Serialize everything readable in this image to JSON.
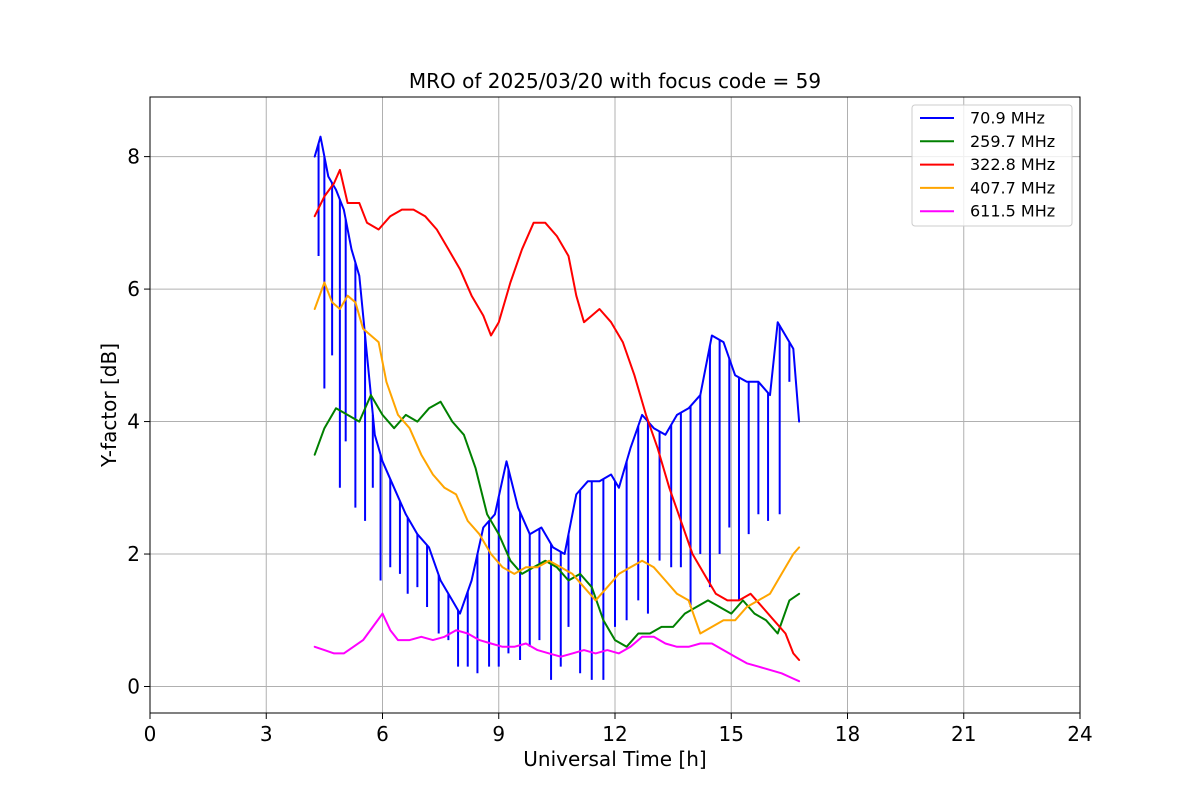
{
  "chart_data": {
    "type": "line",
    "title": "MRO of 2025/03/20 with focus code = 59",
    "xlabel": "Universal Time [h]",
    "ylabel": "Y-factor [dB]",
    "xlim": [
      0,
      24
    ],
    "ylim": [
      -0.4,
      8.9
    ],
    "xticks": [
      0,
      3,
      6,
      9,
      12,
      15,
      18,
      21,
      24
    ],
    "xtick_labels": [
      "0",
      "3",
      "6",
      "9",
      "12",
      "15",
      "18",
      "21",
      "24"
    ],
    "yticks": [
      0,
      2,
      4,
      6,
      8
    ],
    "ytick_labels": [
      "0",
      "2",
      "4",
      "6",
      "8"
    ],
    "grid": true,
    "legend_position": "top-right",
    "series": [
      {
        "name": " 70.9 MHz",
        "color": "#0000ff",
        "x": [
          4.25,
          4.4,
          4.6,
          4.8,
          5.0,
          5.2,
          5.4,
          5.6,
          5.8,
          6.0,
          6.3,
          6.6,
          6.9,
          7.2,
          7.5,
          7.8,
          8.0,
          8.3,
          8.6,
          8.9,
          9.2,
          9.5,
          9.8,
          10.1,
          10.4,
          10.7,
          11.0,
          11.3,
          11.6,
          11.9,
          12.1,
          12.4,
          12.7,
          13.0,
          13.3,
          13.6,
          13.9,
          14.2,
          14.5,
          14.8,
          15.1,
          15.4,
          15.7,
          16.0,
          16.2,
          16.4,
          16.6,
          16.75
        ],
        "y": [
          8.0,
          8.3,
          7.7,
          7.5,
          7.2,
          6.6,
          6.2,
          5.0,
          3.8,
          3.4,
          3.0,
          2.6,
          2.3,
          2.1,
          1.6,
          1.3,
          1.1,
          1.6,
          2.4,
          2.6,
          3.4,
          2.7,
          2.3,
          2.4,
          2.1,
          2.0,
          2.9,
          3.1,
          3.1,
          3.2,
          3.0,
          3.6,
          4.1,
          3.9,
          3.8,
          4.1,
          4.2,
          4.4,
          5.3,
          5.2,
          4.7,
          4.6,
          4.6,
          4.4,
          5.5,
          5.3,
          5.1,
          4.0
        ],
        "spikes_x": [
          4.35,
          4.5,
          4.7,
          4.9,
          5.05,
          5.3,
          5.55,
          5.75,
          5.95,
          6.2,
          6.45,
          6.65,
          6.9,
          7.15,
          7.45,
          7.7,
          7.95,
          8.2,
          8.45,
          8.75,
          9.0,
          9.25,
          9.55,
          9.8,
          10.05,
          10.35,
          10.6,
          10.8,
          11.1,
          11.4,
          11.7,
          12.0,
          12.3,
          12.6,
          12.85,
          13.15,
          13.45,
          13.7,
          13.95,
          14.2,
          14.45,
          14.7,
          14.95,
          15.2,
          15.45,
          15.7,
          15.95,
          16.25,
          16.5
        ],
        "spikes_y": [
          6.5,
          4.5,
          5.0,
          3.0,
          3.7,
          2.7,
          2.5,
          3.0,
          1.6,
          1.8,
          1.7,
          1.4,
          1.5,
          1.2,
          0.8,
          0.7,
          0.3,
          0.3,
          0.2,
          0.3,
          0.3,
          0.5,
          0.4,
          0.6,
          0.7,
          0.1,
          0.3,
          0.9,
          0.2,
          0.1,
          0.1,
          0.9,
          1.0,
          1.3,
          1.1,
          1.9,
          1.8,
          1.8,
          1.2,
          2.0,
          1.5,
          2.0,
          2.4,
          1.3,
          2.3,
          2.6,
          2.5,
          2.6,
          4.6
        ]
      },
      {
        "name": "259.7 MHz",
        "color": "#008000",
        "x": [
          4.25,
          4.5,
          4.8,
          5.1,
          5.4,
          5.7,
          6.0,
          6.3,
          6.6,
          6.9,
          7.2,
          7.5,
          7.8,
          8.1,
          8.4,
          8.7,
          9.0,
          9.3,
          9.6,
          9.9,
          10.2,
          10.5,
          10.8,
          11.1,
          11.4,
          11.7,
          12.0,
          12.3,
          12.6,
          12.9,
          13.2,
          13.5,
          13.8,
          14.1,
          14.4,
          14.7,
          15.0,
          15.3,
          15.6,
          15.9,
          16.2,
          16.5,
          16.75
        ],
        "y": [
          3.5,
          3.9,
          4.2,
          4.1,
          4.0,
          4.4,
          4.1,
          3.9,
          4.1,
          4.0,
          4.2,
          4.3,
          4.0,
          3.8,
          3.3,
          2.6,
          2.3,
          1.9,
          1.7,
          1.8,
          1.9,
          1.8,
          1.6,
          1.7,
          1.5,
          1.0,
          0.7,
          0.6,
          0.8,
          0.8,
          0.9,
          0.9,
          1.1,
          1.2,
          1.3,
          1.2,
          1.1,
          1.3,
          1.1,
          1.0,
          0.8,
          1.3,
          1.4
        ]
      },
      {
        "name": "322.8 MHz",
        "color": "#ff0000",
        "x": [
          4.25,
          4.5,
          4.75,
          4.9,
          5.1,
          5.4,
          5.6,
          5.9,
          6.2,
          6.5,
          6.8,
          7.1,
          7.4,
          7.7,
          8.0,
          8.3,
          8.6,
          8.8,
          9.0,
          9.3,
          9.6,
          9.9,
          10.2,
          10.5,
          10.8,
          11.0,
          11.2,
          11.4,
          11.6,
          11.9,
          12.2,
          12.5,
          12.8,
          13.1,
          13.4,
          13.7,
          14.0,
          14.3,
          14.6,
          14.9,
          15.2,
          15.5,
          15.8,
          16.1,
          16.4,
          16.6,
          16.75
        ],
        "y": [
          7.1,
          7.4,
          7.6,
          7.8,
          7.3,
          7.3,
          7.0,
          6.9,
          7.1,
          7.2,
          7.2,
          7.1,
          6.9,
          6.6,
          6.3,
          5.9,
          5.6,
          5.3,
          5.5,
          6.1,
          6.6,
          7.0,
          7.0,
          6.8,
          6.5,
          5.9,
          5.5,
          5.6,
          5.7,
          5.5,
          5.2,
          4.7,
          4.1,
          3.6,
          3.0,
          2.5,
          2.0,
          1.7,
          1.4,
          1.3,
          1.3,
          1.4,
          1.2,
          1.0,
          0.8,
          0.5,
          0.4
        ]
      },
      {
        "name": "407.7 MHz",
        "color": "#ffa500",
        "x": [
          4.25,
          4.5,
          4.7,
          4.9,
          5.1,
          5.3,
          5.5,
          5.7,
          5.9,
          6.1,
          6.4,
          6.7,
          7.0,
          7.3,
          7.6,
          7.9,
          8.2,
          8.5,
          8.8,
          9.1,
          9.4,
          9.7,
          10.0,
          10.3,
          10.6,
          10.9,
          11.2,
          11.5,
          11.8,
          12.1,
          12.4,
          12.7,
          13.0,
          13.3,
          13.6,
          13.9,
          14.2,
          14.5,
          14.8,
          15.1,
          15.4,
          15.7,
          16.0,
          16.3,
          16.6,
          16.75
        ],
        "y": [
          5.7,
          6.1,
          5.8,
          5.7,
          5.9,
          5.8,
          5.4,
          5.3,
          5.2,
          4.6,
          4.1,
          3.9,
          3.5,
          3.2,
          3.0,
          2.9,
          2.5,
          2.3,
          2.0,
          1.8,
          1.7,
          1.8,
          1.8,
          1.9,
          1.8,
          1.7,
          1.5,
          1.3,
          1.5,
          1.7,
          1.8,
          1.9,
          1.8,
          1.6,
          1.4,
          1.3,
          0.8,
          0.9,
          1.0,
          1.0,
          1.2,
          1.3,
          1.4,
          1.7,
          2.0,
          2.1
        ]
      },
      {
        "name": "611.5 MHz",
        "color": "#ff00ff",
        "x": [
          4.25,
          4.5,
          4.75,
          5.0,
          5.25,
          5.5,
          5.75,
          6.0,
          6.2,
          6.4,
          6.7,
          7.0,
          7.3,
          7.6,
          7.9,
          8.2,
          8.5,
          8.8,
          9.1,
          9.4,
          9.7,
          10.0,
          10.3,
          10.6,
          10.9,
          11.2,
          11.5,
          11.8,
          12.1,
          12.4,
          12.7,
          13.0,
          13.3,
          13.6,
          13.9,
          14.2,
          14.5,
          14.8,
          15.1,
          15.4,
          15.7,
          16.0,
          16.3,
          16.6,
          16.75
        ],
        "y": [
          0.6,
          0.55,
          0.5,
          0.5,
          0.6,
          0.7,
          0.9,
          1.1,
          0.85,
          0.7,
          0.7,
          0.75,
          0.7,
          0.75,
          0.85,
          0.8,
          0.7,
          0.65,
          0.6,
          0.6,
          0.65,
          0.55,
          0.5,
          0.45,
          0.5,
          0.55,
          0.5,
          0.55,
          0.5,
          0.6,
          0.75,
          0.75,
          0.65,
          0.6,
          0.6,
          0.65,
          0.65,
          0.55,
          0.45,
          0.35,
          0.3,
          0.25,
          0.2,
          0.12,
          0.08
        ]
      }
    ]
  }
}
